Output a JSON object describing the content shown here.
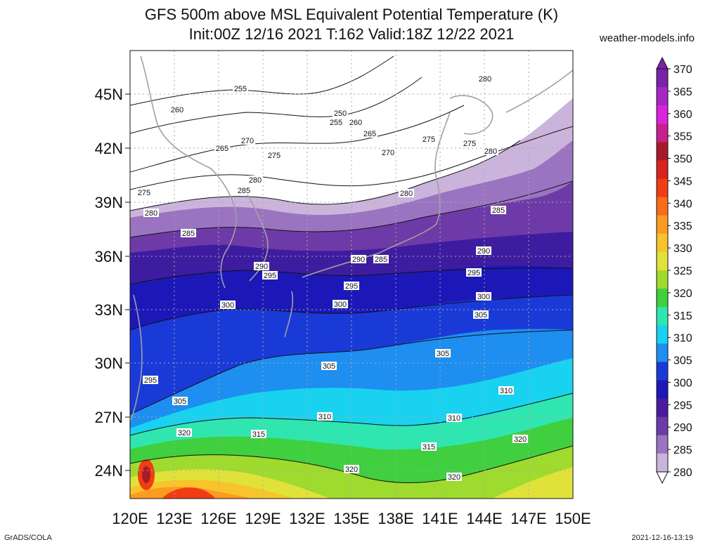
{
  "title": {
    "line1": "GFS 500m above MSL Equivalent Potential Temperature (K)",
    "line2": "Init:00Z 12/16 2021 T:162 Valid:18Z 12/22 2021"
  },
  "source": "weather-models.info",
  "footer": {
    "left": "GrADS/COLA",
    "right": "2021-12-16-13:19"
  },
  "axes": {
    "lat_labels": [
      "45N",
      "42N",
      "39N",
      "36N",
      "33N",
      "30N",
      "27N",
      "24N"
    ],
    "lon_labels": [
      "120E",
      "123E",
      "126E",
      "129E",
      "132E",
      "135E",
      "138E",
      "141E",
      "144E",
      "147E",
      "150E"
    ]
  },
  "colorbar": {
    "labels": [
      "370",
      "365",
      "360",
      "355",
      "350",
      "345",
      "340",
      "335",
      "330",
      "325",
      "320",
      "315",
      "310",
      "305",
      "300",
      "295",
      "290",
      "285",
      "280"
    ],
    "colors": [
      "#7a22a8",
      "#a526c4",
      "#dd22dd",
      "#c8208c",
      "#a51c28",
      "#d8231e",
      "#f23c14",
      "#f76e17",
      "#fb9b21",
      "#f7c52b",
      "#e0e23a",
      "#9fda2e",
      "#3fcf3f",
      "#30e6b0",
      "#18d2f0",
      "#1e8ef0",
      "#1a3ad8",
      "#1c18b8",
      "#4a1aa0",
      "#6e3aa8",
      "#9a74c0",
      "#cbb4dc"
    ]
  },
  "contour_labels": [
    {
      "text": "255"
    },
    {
      "text": "260"
    },
    {
      "text": "250"
    },
    {
      "text": "255"
    },
    {
      "text": "260"
    },
    {
      "text": "265"
    },
    {
      "text": "270"
    },
    {
      "text": "275"
    },
    {
      "text": "265"
    },
    {
      "text": "270"
    },
    {
      "text": "275"
    },
    {
      "text": "275"
    },
    {
      "text": "280"
    },
    {
      "text": "280"
    },
    {
      "text": "280"
    },
    {
      "text": "275"
    },
    {
      "text": "280"
    },
    {
      "text": "285"
    },
    {
      "text": "280"
    },
    {
      "text": "285"
    },
    {
      "text": "285"
    },
    {
      "text": "290"
    },
    {
      "text": "295"
    },
    {
      "text": "290"
    },
    {
      "text": "285"
    },
    {
      "text": "290"
    },
    {
      "text": "295"
    },
    {
      "text": "300"
    },
    {
      "text": "295"
    },
    {
      "text": "300"
    },
    {
      "text": "300"
    },
    {
      "text": "305"
    },
    {
      "text": "305"
    },
    {
      "text": "305"
    },
    {
      "text": "295"
    },
    {
      "text": "305"
    },
    {
      "text": "310"
    },
    {
      "text": "310"
    },
    {
      "text": "310"
    },
    {
      "text": "320"
    },
    {
      "text": "315"
    },
    {
      "text": "315"
    },
    {
      "text": "320"
    },
    {
      "text": "320"
    },
    {
      "text": "320"
    }
  ]
}
